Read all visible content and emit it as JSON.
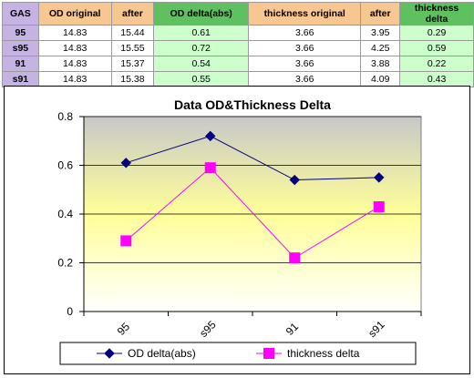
{
  "table": {
    "headers": [
      "GAS",
      "OD original",
      "after",
      "OD delta(abs)",
      "thickness original",
      "after",
      "thickness delta"
    ],
    "rows": [
      [
        "95",
        "14.83",
        "15.44",
        "0.61",
        "3.66",
        "3.95",
        "0.29"
      ],
      [
        "s95",
        "14.83",
        "15.55",
        "0.72",
        "3.66",
        "4.25",
        "0.59"
      ],
      [
        "91",
        "14.83",
        "15.37",
        "0.54",
        "3.66",
        "3.88",
        "0.22"
      ],
      [
        "s91",
        "14.83",
        "15.38",
        "0.55",
        "3.66",
        "4.09",
        "0.43"
      ]
    ]
  },
  "colors": {
    "header_lavender": "#c5b4e3",
    "header_tan": "#f8c690",
    "header_green": "#5fc05f",
    "cell_light_green": "#ccffcc",
    "series_od": "#000080",
    "series_thickness": "#ff00ff",
    "plot_gradient_top": "#c8c8c8",
    "plot_gradient_mid": "#ffff99"
  },
  "chart_data": {
    "type": "line",
    "title": "Data OD&Thickness Delta",
    "categories": [
      "95",
      "s95",
      "91",
      "s91"
    ],
    "series": [
      {
        "name": "OD delta(abs)",
        "values": [
          0.61,
          0.72,
          0.54,
          0.55
        ],
        "marker": "diamond"
      },
      {
        "name": "thickness delta",
        "values": [
          0.29,
          0.59,
          0.22,
          0.43
        ],
        "marker": "square"
      }
    ],
    "ylim": [
      0,
      0.8
    ],
    "yticks": [
      "0",
      "0.2",
      "0.4",
      "0.6",
      "0.8"
    ],
    "xlabel": "",
    "ylabel": "",
    "grid": true,
    "legend_position": "bottom"
  }
}
